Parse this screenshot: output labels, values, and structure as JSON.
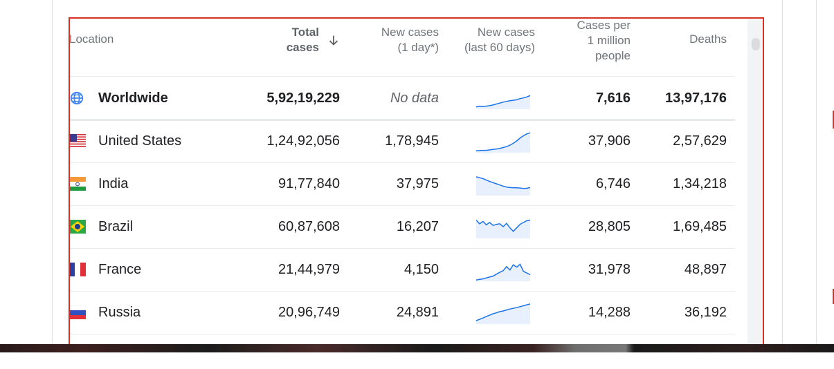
{
  "table": {
    "headers": {
      "location": "Location",
      "total_line1": "Total",
      "total_line2": "cases",
      "new1_line1": "New cases",
      "new1_line2": "(1 day*)",
      "new60_line1": "New cases",
      "new60_line2": "(last 60 days)",
      "pm_line1": "Cases per",
      "pm_line2": "1 million",
      "pm_line3": "people",
      "deaths": "Deaths"
    },
    "sort_icon": "arrow-down-icon",
    "rows": [
      {
        "icon": "globe-icon",
        "name": "Worldwide",
        "total": "5,92,19,229",
        "new1": "No data",
        "per_million": "7,616",
        "deaths": "13,97,176",
        "trend": [
          0.1,
          0.12,
          0.11,
          0.13,
          0.15,
          0.18,
          0.22,
          0.26,
          0.3,
          0.33,
          0.36,
          0.38,
          0.4,
          0.45,
          0.48,
          0.52,
          0.58
        ]
      },
      {
        "icon": "us-flag-icon",
        "name": "United States",
        "total": "1,24,92,056",
        "new1": "1,78,945",
        "per_million": "37,906",
        "deaths": "2,57,629",
        "trend": [
          0.08,
          0.09,
          0.1,
          0.1,
          0.12,
          0.14,
          0.16,
          0.18,
          0.22,
          0.26,
          0.32,
          0.4,
          0.5,
          0.62,
          0.72,
          0.8,
          0.85
        ]
      },
      {
        "icon": "india-flag-icon",
        "name": "India",
        "total": "91,77,840",
        "new1": "37,975",
        "per_million": "6,746",
        "deaths": "1,34,218",
        "trend": [
          0.8,
          0.76,
          0.72,
          0.66,
          0.6,
          0.55,
          0.5,
          0.45,
          0.4,
          0.36,
          0.34,
          0.33,
          0.33,
          0.32,
          0.3,
          0.31,
          0.34
        ]
      },
      {
        "icon": "brazil-flag-icon",
        "name": "Brazil",
        "total": "60,87,608",
        "new1": "16,207",
        "per_million": "28,805",
        "deaths": "1,69,485",
        "trend": [
          0.78,
          0.62,
          0.72,
          0.58,
          0.68,
          0.55,
          0.6,
          0.62,
          0.5,
          0.64,
          0.45,
          0.3,
          0.45,
          0.6,
          0.68,
          0.75,
          0.78
        ]
      },
      {
        "icon": "france-flag-icon",
        "name": "France",
        "total": "21,44,979",
        "new1": "4,150",
        "per_million": "31,978",
        "deaths": "48,897",
        "trend": [
          0.05,
          0.08,
          0.1,
          0.14,
          0.18,
          0.22,
          0.3,
          0.38,
          0.45,
          0.62,
          0.48,
          0.7,
          0.6,
          0.72,
          0.42,
          0.35,
          0.28
        ]
      },
      {
        "icon": "russia-flag-icon",
        "name": "Russia",
        "total": "20,96,749",
        "new1": "24,891",
        "per_million": "14,288",
        "deaths": "36,192",
        "trend": [
          0.15,
          0.2,
          0.26,
          0.32,
          0.38,
          0.44,
          0.48,
          0.53,
          0.56,
          0.6,
          0.64,
          0.67,
          0.7,
          0.74,
          0.78,
          0.82,
          0.86
        ]
      }
    ]
  },
  "colors": {
    "accent": "#1a73e8",
    "spark_fill": "#e8f0fe",
    "frame": "#d93025"
  }
}
